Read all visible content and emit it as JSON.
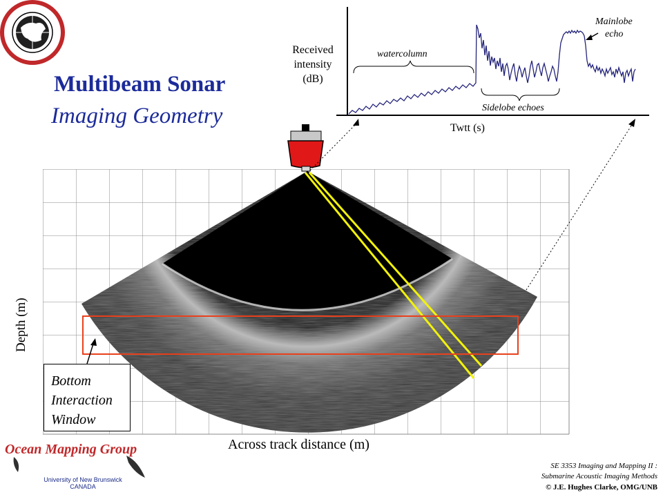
{
  "title": {
    "line1": "Multibeam Sonar",
    "line2": "Imaging Geometry"
  },
  "logo": {
    "name": "geodesy-geomatics-unb-seal",
    "text_top": "GEODESY AND GEOMATICS ENGINEERING",
    "text_bottom": "UNB"
  },
  "graph": {
    "ylabel_lines": [
      "Received",
      "intensity",
      "(dB)"
    ],
    "xlabel": "Twtt (s)",
    "annotations": {
      "watercolumn": "watercolumn",
      "sidelobe": "Sidelobe echoes",
      "mainlobe_lines": [
        "Mainlobe",
        "echo"
      ]
    }
  },
  "sonar": {
    "depth_label": "Depth (m)",
    "across_label": "Across track distance (m)",
    "window_label_lines": [
      "Bottom",
      "Interaction",
      "Window"
    ]
  },
  "footer": {
    "group": "Ocean Mapping Group",
    "university_lines": [
      "University of New Brunswick",
      "CANADA"
    ],
    "course_lines": [
      "SE 3353 Imaging and Mapping II :",
      "Submarine Acoustic Imaging Methods"
    ],
    "copyright": "© J.E. Hughes Clarke, OMG/UNB"
  },
  "colors": {
    "title": "#1c2b9a",
    "graph_trace": "#23237a",
    "ship_hull": "#e01818",
    "beam": "#f2f20a",
    "window_outline": "#e8401c",
    "omg_title": "#c0282a"
  }
}
